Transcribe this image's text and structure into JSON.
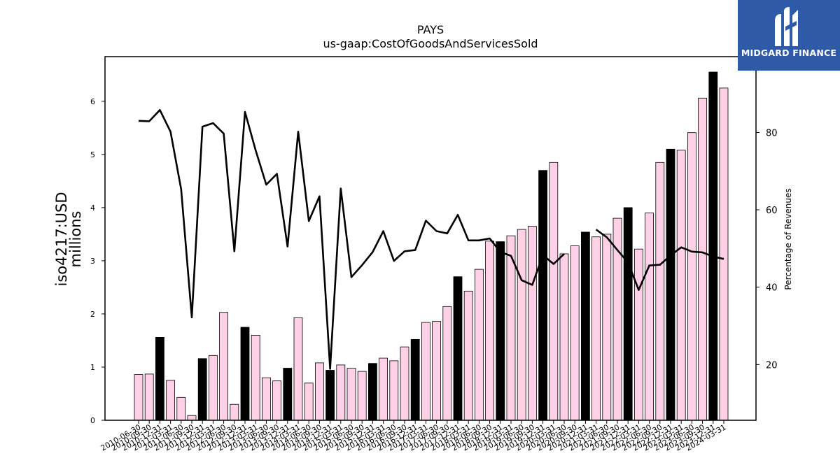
{
  "logo": {
    "text": "MIDGARD FINANCE",
    "icon": "midgard-m-icon"
  },
  "chart_data": {
    "type": "bar",
    "title": "PAYS",
    "subtitle": "us-gaap:CostOfGoodsAndServicesSold",
    "ylabel": "iso4217:USD",
    "ylabel2": "millions",
    "y2label": "Percentage of Revenues",
    "ylim": [
      0,
      6.84
    ],
    "y2lim": [
      5.6,
      99.6
    ],
    "yticks": [
      "0",
      "1",
      "2",
      "3",
      "4",
      "5",
      "6"
    ],
    "y2ticks": [
      "20",
      "40",
      "60",
      "80"
    ],
    "colors": {
      "quarter": "#ffd0e6",
      "annual": "#000000",
      "line": "#000000"
    },
    "categories": [
      "2010-06-30",
      "2010-09-30",
      "2010-12-31",
      "2011-03-31",
      "2011-06-30",
      "2011-09-30",
      "2011-12-31",
      "2012-03-31",
      "2012-06-30",
      "2012-09-30",
      "2012-12-31",
      "2013-03-31",
      "2013-06-30",
      "2013-09-30",
      "2013-12-31",
      "2014-03-31",
      "2014-06-30",
      "2014-09-30",
      "2014-12-31",
      "2015-03-31",
      "2015-06-30",
      "2015-09-30",
      "2015-12-31",
      "2016-03-31",
      "2016-06-30",
      "2016-09-30",
      "2016-12-31",
      "2017-03-31",
      "2017-06-30",
      "2017-09-30",
      "2017-12-31",
      "2018-03-31",
      "2018-06-30",
      "2018-09-30",
      "2018-12-31",
      "2019-03-31",
      "2019-06-30",
      "2019-09-30",
      "2019-12-31",
      "2020-03-31",
      "2020-06-30",
      "2020-09-30",
      "2020-12-31",
      "2021-03-31",
      "2021-06-30",
      "2021-09-30",
      "2021-12-31",
      "2022-03-31",
      "2022-06-30",
      "2022-09-30",
      "2022-12-31",
      "2023-03-31",
      "2023-06-30",
      "2023-09-30",
      "2023-12-31",
      "2024-03-31"
    ],
    "values": [
      0.86,
      0.87,
      1.56,
      0.75,
      0.43,
      0.09,
      1.16,
      1.22,
      2.03,
      0.3,
      1.75,
      1.6,
      0.8,
      0.74,
      0.98,
      1.93,
      0.7,
      1.08,
      0.94,
      1.04,
      0.98,
      0.92,
      1.07,
      1.17,
      1.12,
      1.38,
      1.52,
      1.84,
      1.86,
      2.14,
      2.7,
      2.43,
      2.84,
      3.37,
      3.36,
      3.47,
      3.59,
      3.65,
      4.7,
      4.85,
      3.13,
      3.28,
      3.54,
      3.45,
      3.5,
      3.8,
      4.0,
      3.22,
      3.9,
      4.85,
      5.1,
      5.08,
      5.41,
      6.06,
      6.55,
      6.25
    ],
    "annual": [
      false,
      false,
      true,
      false,
      false,
      false,
      true,
      false,
      false,
      false,
      true,
      false,
      false,
      false,
      true,
      false,
      false,
      false,
      true,
      false,
      false,
      false,
      true,
      false,
      false,
      false,
      true,
      false,
      false,
      false,
      true,
      false,
      false,
      false,
      true,
      false,
      false,
      false,
      true,
      false,
      false,
      false,
      true,
      false,
      false,
      false,
      true,
      false,
      false,
      false,
      true,
      false,
      false,
      false,
      true,
      false
    ],
    "line_series": {
      "name": "Percentage of Revenues",
      "values": [
        83,
        82.9,
        85.8,
        80.2,
        65.3,
        32.2,
        81.5,
        82.4,
        79.7,
        49.3,
        85.3,
        75.4,
        66.5,
        69.3,
        50.5,
        80.2,
        57.1,
        63.5,
        18.9,
        65.5,
        42.6,
        45.7,
        49.1,
        54.5,
        46.8,
        49.3,
        49.6,
        57.2,
        54.5,
        53.9,
        58.7,
        52.1,
        52.1,
        52.6,
        49.1,
        48.1,
        41.8,
        40.6,
        48.3,
        46,
        48.6,
        null,
        null,
        54.9,
        52.9,
        49.6,
        46.4,
        39.3,
        45.6,
        45.8,
        48.2,
        50.3,
        49.2,
        49,
        47.9,
        47.3
      ]
    }
  }
}
